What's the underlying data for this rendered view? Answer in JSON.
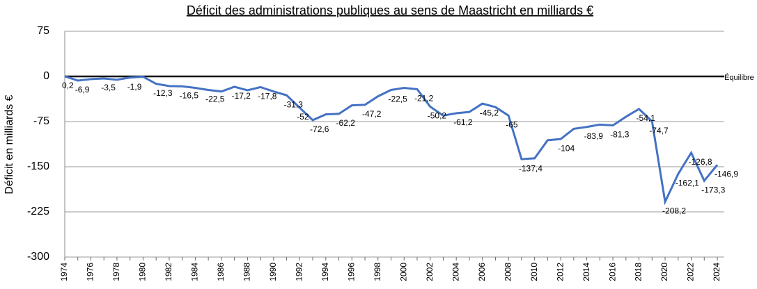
{
  "chart_data": {
    "type": "line",
    "title": "Déficit des administrations publiques au sens de Maastricht en milliards €",
    "y_label": "Déficit en milliards €",
    "annotation": "Équilibre",
    "categories": [
      1974,
      null,
      1976,
      null,
      1978,
      null,
      1980,
      null,
      1982,
      null,
      1984,
      null,
      1986,
      null,
      1988,
      null,
      1990,
      null,
      1992,
      null,
      1994,
      null,
      1996,
      null,
      1998,
      null,
      2000,
      null,
      2002,
      null,
      2004,
      null,
      2006,
      null,
      2008,
      null,
      2010,
      null,
      2012,
      null,
      2014,
      null,
      2016,
      null,
      2018,
      null,
      2020,
      null,
      2022,
      null,
      2024
    ],
    "series": [
      {
        "name": "Déficit",
        "color": "#4472c4",
        "values": [
          0.2,
          -6.9,
          -4.5,
          -3.5,
          -5.5,
          -1.9,
          -0.5,
          -12.3,
          -16,
          -16.5,
          -19,
          -22.5,
          -25,
          -17.2,
          -23,
          -17.8,
          -25,
          -31.3,
          -52,
          -72.6,
          -63,
          -62.2,
          -48,
          -47.2,
          -33,
          -22.5,
          -19,
          -21.2,
          -50.2,
          -65,
          -61.2,
          -59,
          -45.2,
          -51,
          -65,
          -137.4,
          -136,
          -106,
          -104,
          -87,
          -83.9,
          -80,
          -81.3,
          -67,
          -54.1,
          -74.7,
          -208.2,
          -162.1,
          -126.8,
          -173.3,
          -146.9
        ],
        "value_labels": [
          "0,2",
          "-6,9",
          null,
          "-3,5",
          null,
          "-1,9",
          null,
          "-12,3",
          null,
          "-16,5",
          null,
          "-22,5",
          null,
          "-17,2",
          null,
          "-17,8",
          null,
          "-31,3",
          "-52",
          "-72,6",
          null,
          "-62,2",
          null,
          "-47,2",
          null,
          "-22,5",
          null,
          "-21,2",
          "-50,2",
          null,
          "-61,2",
          null,
          "-45,2",
          null,
          "-65",
          "-137,4",
          null,
          null,
          "-104",
          null,
          "-83,9",
          null,
          "-81,3",
          null,
          "-54,1",
          "-74,7",
          "-208,2",
          "-162,1",
          "-126,8",
          "-173,3",
          "-146,9"
        ]
      }
    ],
    "ylim": [
      -300,
      75
    ],
    "yticks": [
      75,
      0,
      -75,
      -150,
      -225,
      -300
    ],
    "grid": true
  }
}
